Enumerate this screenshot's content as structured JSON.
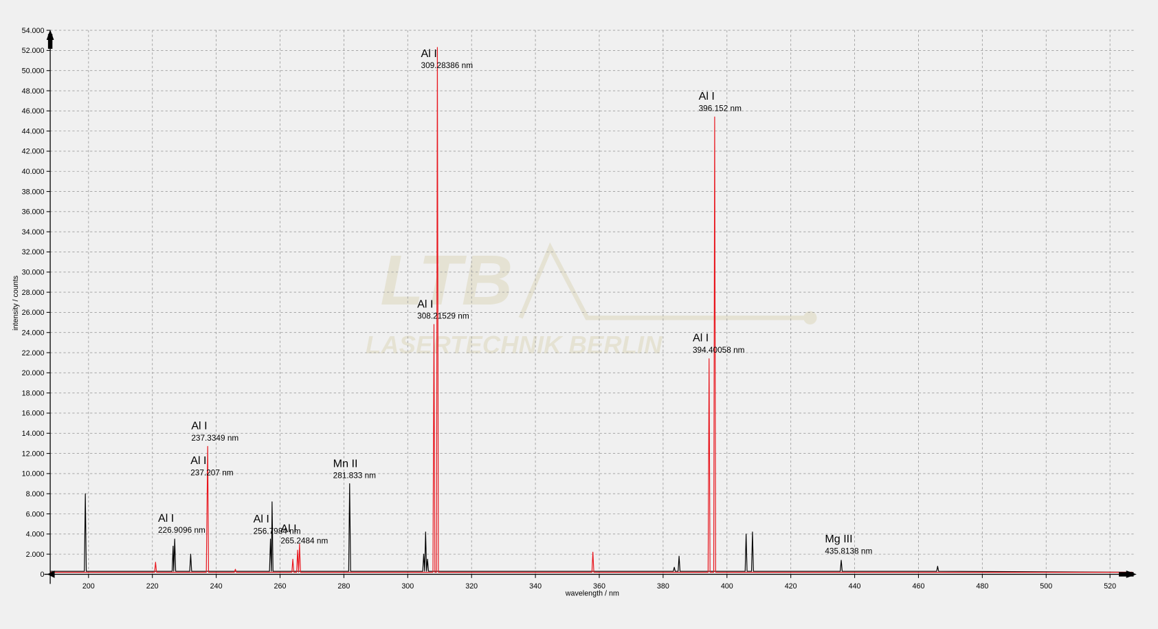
{
  "chart_data": {
    "type": "line",
    "x_label": "wavelength / nm",
    "y_label": "intensity / counts",
    "watermark_title": "LTB",
    "watermark_subtitle": "LASERTECHNIK BERLIN",
    "xlim": [
      188,
      527.4
    ],
    "ylim": [
      0,
      54000
    ],
    "xticks": [
      200,
      220,
      240,
      260,
      280,
      300,
      320,
      340,
      360,
      380,
      400,
      420,
      440,
      460,
      480,
      500,
      520
    ],
    "yticks": [
      0,
      {
        "value": 2000,
        "label": "2.000"
      },
      {
        "value": 4000,
        "label": "4.000"
      },
      {
        "value": 6000,
        "label": "6.000"
      },
      {
        "value": 8000,
        "label": "8.000"
      },
      {
        "value": 10000,
        "label": "10.000"
      },
      {
        "value": 12000,
        "label": "12.000"
      },
      {
        "value": 14000,
        "label": "14.000"
      },
      {
        "value": 16000,
        "label": "16.000"
      },
      {
        "value": 18000,
        "label": "18.000"
      },
      {
        "value": 20000,
        "label": "20.000"
      },
      {
        "value": 22000,
        "label": "22.000"
      },
      {
        "value": 24000,
        "label": "24.000"
      },
      {
        "value": 26000,
        "label": "26.000"
      },
      {
        "value": 28000,
        "label": "28.000"
      },
      {
        "value": 30000,
        "label": "30.000"
      },
      {
        "value": 32000,
        "label": "32.000"
      },
      {
        "value": 34000,
        "label": "34.000"
      },
      {
        "value": 36000,
        "label": "36.000"
      },
      {
        "value": 38000,
        "label": "38.000"
      },
      {
        "value": 40000,
        "label": "40.000"
      },
      {
        "value": 42000,
        "label": "42.000"
      },
      {
        "value": 44000,
        "label": "44.000"
      },
      {
        "value": 46000,
        "label": "46.000"
      },
      {
        "value": 48000,
        "label": "48.000"
      },
      {
        "value": 50000,
        "label": "50.000"
      },
      {
        "value": 52000,
        "label": "52.000"
      },
      {
        "value": 54000,
        "label": "54.000"
      }
    ],
    "grid": true,
    "series": [
      {
        "color": "#000000",
        "x": [
          188,
          198.7,
          199,
          199.3,
          226.2,
          226.5,
          226.7,
          227,
          227.3,
          231.7,
          232,
          232.3,
          256.7,
          257,
          257.3,
          257.5,
          257.8,
          281.5,
          281.8,
          282.1,
          304.7,
          305,
          305.3,
          305.6,
          305.9,
          306.2,
          306.5,
          383.2,
          383.5,
          383.8,
          384.7,
          385,
          385.3,
          405.7,
          406,
          406.3,
          407.7,
          408,
          408.3,
          435.5,
          435.8,
          436.1,
          465.7,
          466,
          466.3,
          527
        ],
        "values": [
          300,
          300,
          8000,
          300,
          300,
          2800,
          300,
          3500,
          300,
          300,
          2000,
          300,
          300,
          3500,
          300,
          7200,
          300,
          300,
          9000,
          300,
          300,
          2000,
          300,
          4200,
          300,
          1500,
          300,
          300,
          700,
          300,
          300,
          1800,
          300,
          300,
          4000,
          300,
          300,
          4200,
          300,
          300,
          1400,
          300,
          300,
          800,
          300,
          200
        ]
      },
      {
        "color": "#e8141c",
        "x": [
          188,
          220.7,
          221,
          221.3,
          236.9,
          237.207,
          237.3349,
          237.6,
          245.7,
          246,
          246.3,
          263.7,
          264,
          264.3,
          265.2,
          265.5,
          265.8,
          266.1,
          266.4,
          307.9,
          308.21529,
          308.5,
          309,
          309.28386,
          309.6,
          357.7,
          358,
          358.3,
          394.1,
          394.40058,
          394.7,
          395.85,
          396.152,
          396.45,
          527
        ],
        "values": [
          200,
          200,
          1200,
          200,
          200,
          9200,
          12700,
          200,
          200,
          500,
          200,
          200,
          1500,
          200,
          200,
          2400,
          200,
          3000,
          200,
          200,
          24800,
          200,
          200,
          52300,
          200,
          200,
          2200,
          200,
          200,
          21400,
          200,
          200,
          45400,
          200,
          200
        ]
      }
    ],
    "annotations": [
      {
        "element": "Al I",
        "wavelength": "226.9096 nm"
      },
      {
        "element": "Al I",
        "wavelength": "237.3349 nm"
      },
      {
        "element": "Al I",
        "wavelength": "237.207 nm"
      },
      {
        "element": "Al I",
        "wavelength": "256.7984 nm"
      },
      {
        "element": "Al I",
        "wavelength": "265.2484 nm"
      },
      {
        "element": "Mn II",
        "wavelength": "281.833 nm"
      },
      {
        "element": "Al I",
        "wavelength": "308.21529 nm"
      },
      {
        "element": "Al I",
        "wavelength": "309.28386 nm"
      },
      {
        "element": "Al I",
        "wavelength": "396.152 nm"
      },
      {
        "element": "Al I",
        "wavelength": "394.40058 nm"
      },
      {
        "element": "Mg III",
        "wavelength": "435.8138 nm"
      }
    ]
  }
}
